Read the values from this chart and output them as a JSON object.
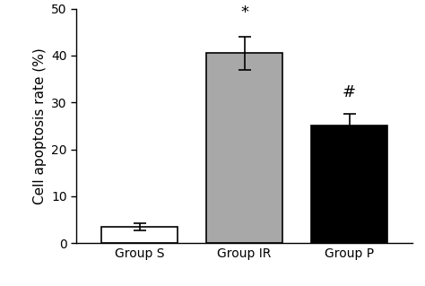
{
  "categories": [
    "Group S",
    "Group IR",
    "Group P"
  ],
  "values": [
    3.5,
    40.5,
    25.0
  ],
  "errors": [
    0.8,
    3.5,
    2.5
  ],
  "bar_colors": [
    "#ffffff",
    "#a8a8a8",
    "#000000"
  ],
  "bar_edgecolors": [
    "#000000",
    "#000000",
    "#000000"
  ],
  "annotations": [
    "",
    "*",
    "#"
  ],
  "annotation_offsets": [
    0,
    3.5,
    3.0
  ],
  "ylabel": "Cell apoptosis rate (%)",
  "ylim": [
    0,
    50
  ],
  "yticks": [
    0,
    10,
    20,
    30,
    40,
    50
  ],
  "bar_width": 0.72,
  "annotation_fontsize": 13,
  "tick_fontsize": 10,
  "label_fontsize": 11
}
